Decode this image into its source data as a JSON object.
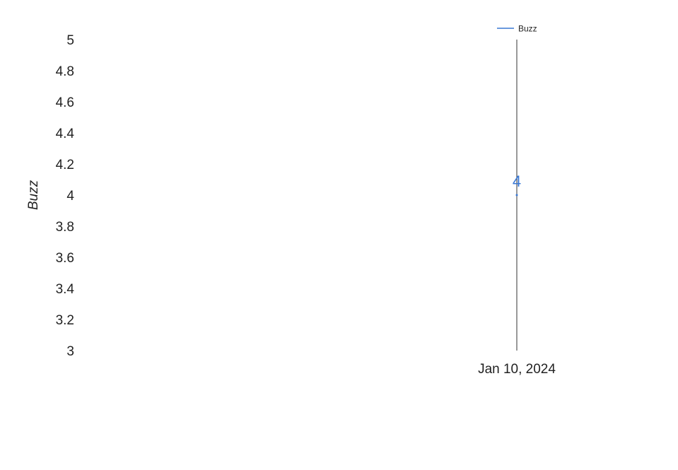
{
  "chart_data": {
    "type": "line",
    "x": [
      "Jan 10, 2024"
    ],
    "series": [
      {
        "name": "Buzz",
        "values": [
          4
        ],
        "color": "#3a78d4"
      }
    ],
    "ylabel": "Buzz",
    "xlabel": "",
    "ylim": [
      3,
      5
    ],
    "yticks": [
      "5",
      "4.8",
      "4.6",
      "4.4",
      "4.2",
      "4",
      "3.8",
      "3.6",
      "3.4",
      "3.2",
      "3"
    ],
    "data_labels": [
      "4"
    ],
    "grid": false,
    "legend_position": "top-right"
  }
}
